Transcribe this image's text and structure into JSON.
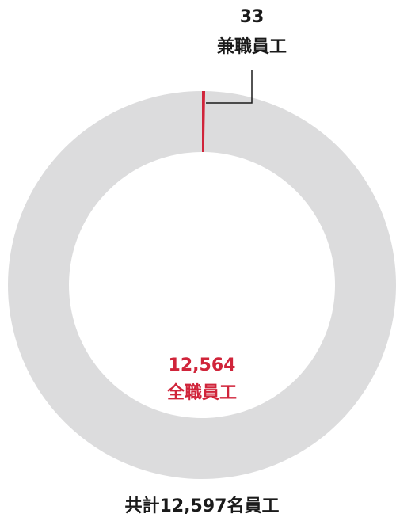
{
  "chart_data": {
    "type": "donut",
    "title": "共計12,597名員工",
    "categories": [
      "兼職員工",
      "全職員工"
    ],
    "values": [
      33,
      12564
    ],
    "value_labels": [
      "33",
      "12,564"
    ],
    "colors": [
      "#d0243a",
      "#dcdcdd"
    ],
    "label_colors": [
      "#1a1a1a",
      "#d0243a"
    ]
  }
}
